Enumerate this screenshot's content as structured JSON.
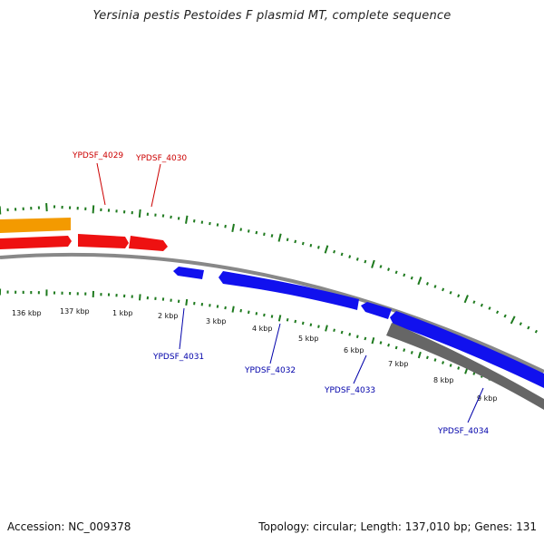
{
  "title": "Yersinia pestis Pestoides F plasmid MT, complete sequence",
  "accession_text": "Accession: NC_009378",
  "summary_text": "Topology: circular; Length: 137,010 bp; Genes: 131",
  "colors": {
    "forward_genes": "#ee1111",
    "reverse_genes": "#1111ee",
    "orange_feature": "#f39a00",
    "gray_feature": "#666666",
    "backbone": "#888888",
    "gc_ticks": "#1e7a1e",
    "forward_label": "#cc0000",
    "reverse_label": "#0000aa"
  },
  "tick_labels": [
    "136 kbp",
    "137 kbp",
    "1 kbp",
    "2 kbp",
    "3 kbp",
    "4 kbp",
    "5 kbp",
    "6 kbp",
    "7 kbp",
    "8 kbp",
    "9 kbp"
  ],
  "gene_labels": {
    "forward": [
      "YPDSF_4029",
      "YPDSF_4030"
    ],
    "reverse": [
      "YPDSF_4031",
      "YPDSF_4032",
      "YPDSF_4033",
      "YPDSF_4034"
    ]
  }
}
